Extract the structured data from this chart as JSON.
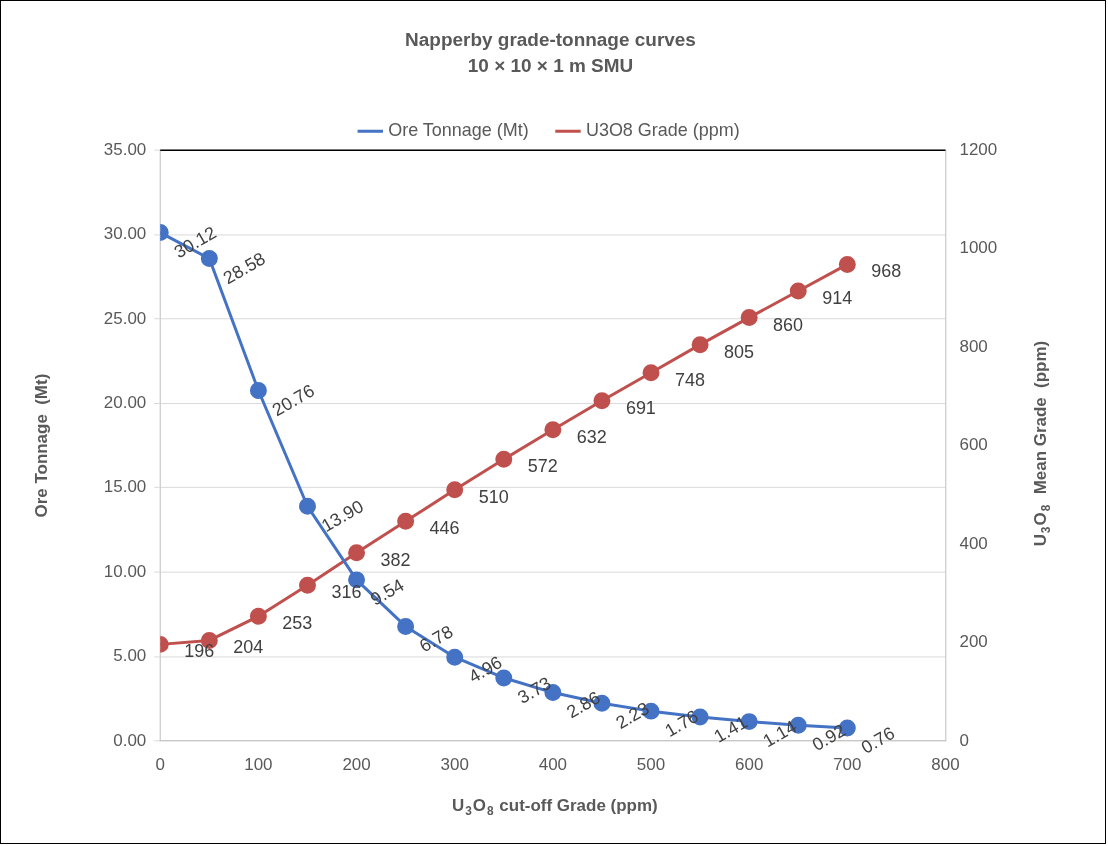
{
  "chart_data": {
    "type": "line",
    "title": "Napperby grade-tonnage curves",
    "subtitle": "10 × 10 × 1 m SMU",
    "xlabel": "U$_{3}$O$_{8}$ cut-off Grade (ppm)",
    "ylabel": "Ore Tonnage  (Mt)",
    "y2label": "U$_{3}$O$_{8}$  Mean Grade  (ppm)",
    "x": [
      0,
      50,
      100,
      150,
      200,
      250,
      300,
      350,
      400,
      450,
      500,
      550,
      600,
      650,
      700
    ],
    "series": [
      {
        "name": "Ore Tonnage (Mt)",
        "color": "#4472c4",
        "values": [
          30.12,
          28.58,
          20.76,
          13.9,
          9.54,
          6.78,
          4.96,
          3.73,
          2.86,
          2.23,
          1.76,
          1.41,
          1.14,
          0.92,
          0.76
        ],
        "value_labels": [
          "30.12",
          "28.58",
          "20.76",
          "13.90",
          "9.54",
          "6.78",
          "4.96",
          "3.73",
          "2.86",
          "2.23",
          "1.76",
          "1.41",
          "1.14",
          "0.92",
          "0.76"
        ]
      },
      {
        "name": "U3O8 Grade (ppm)",
        "color": "#c0504d",
        "axis": "y2",
        "values": [
          196,
          204,
          253,
          316,
          382,
          446,
          510,
          572,
          632,
          691,
          748,
          805,
          860,
          914,
          968
        ],
        "value_labels": [
          "196",
          "204",
          "253",
          "316",
          "382",
          "446",
          "510",
          "572",
          "632",
          "691",
          "748",
          "805",
          "860",
          "914",
          "968"
        ]
      }
    ],
    "xlim": [
      0,
      800
    ],
    "xticks": [
      0,
      100,
      200,
      300,
      400,
      500,
      600,
      700,
      800
    ],
    "ylim": [
      0,
      35
    ],
    "yticks": [
      {
        "value": 0,
        "label": "0.00"
      },
      {
        "value": 5,
        "label": "5.00"
      },
      {
        "value": 10,
        "label": "10.00"
      },
      {
        "value": 15,
        "label": "15.00"
      },
      {
        "value": 20,
        "label": "20.00"
      },
      {
        "value": 25,
        "label": "25.00"
      },
      {
        "value": 30,
        "label": "30.00"
      },
      {
        "value": 35,
        "label": "35.00"
      }
    ],
    "y2lim": [
      0,
      1200
    ],
    "y2ticks": [
      0,
      200,
      400,
      600,
      800,
      1000,
      1200
    ],
    "grid": "y",
    "legend": "top",
    "marker": "circle",
    "line_style": "solid"
  }
}
